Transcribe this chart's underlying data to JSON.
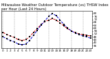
{
  "title": "Milwaukee Weather Outdoor Temperature (vs) THSW Index per Hour (Last 24 Hours)",
  "hours": [
    0,
    1,
    2,
    3,
    4,
    5,
    6,
    7,
    8,
    9,
    10,
    11,
    12,
    13,
    14,
    15,
    16,
    17,
    18,
    19,
    20,
    21,
    22,
    23
  ],
  "outdoor_temp": [
    54,
    51,
    49,
    47,
    44,
    43,
    44,
    48,
    54,
    59,
    65,
    69,
    71,
    73,
    71,
    67,
    63,
    59,
    56,
    54,
    52,
    51,
    50,
    49
  ],
  "thsw_index": [
    48,
    45,
    43,
    41,
    38,
    37,
    38,
    43,
    50,
    57,
    64,
    70,
    76,
    80,
    77,
    71,
    65,
    60,
    56,
    53,
    51,
    49,
    48,
    46
  ],
  "temp_color": "#cc0000",
  "thsw_color": "#0000cc",
  "dot_color": "#000000",
  "bg_color": "#ffffff",
  "grid_color": "#999999",
  "ylim_min": 32,
  "ylim_max": 84,
  "ytick_values": [
    36,
    40,
    44,
    48,
    52,
    56,
    60,
    64,
    68,
    72,
    76,
    80
  ],
  "ytick_labels": [
    "36",
    "40",
    "44",
    "48",
    "52",
    "56",
    "60",
    "64",
    "68",
    "72",
    "76",
    "80"
  ],
  "grid_hours": [
    0,
    3,
    6,
    9,
    12,
    15,
    18,
    21
  ],
  "title_fontsize": 3.8,
  "tick_fontsize": 3.0,
  "legend_fontsize": 3.0,
  "linewidth": 0.7,
  "markersize": 1.5
}
